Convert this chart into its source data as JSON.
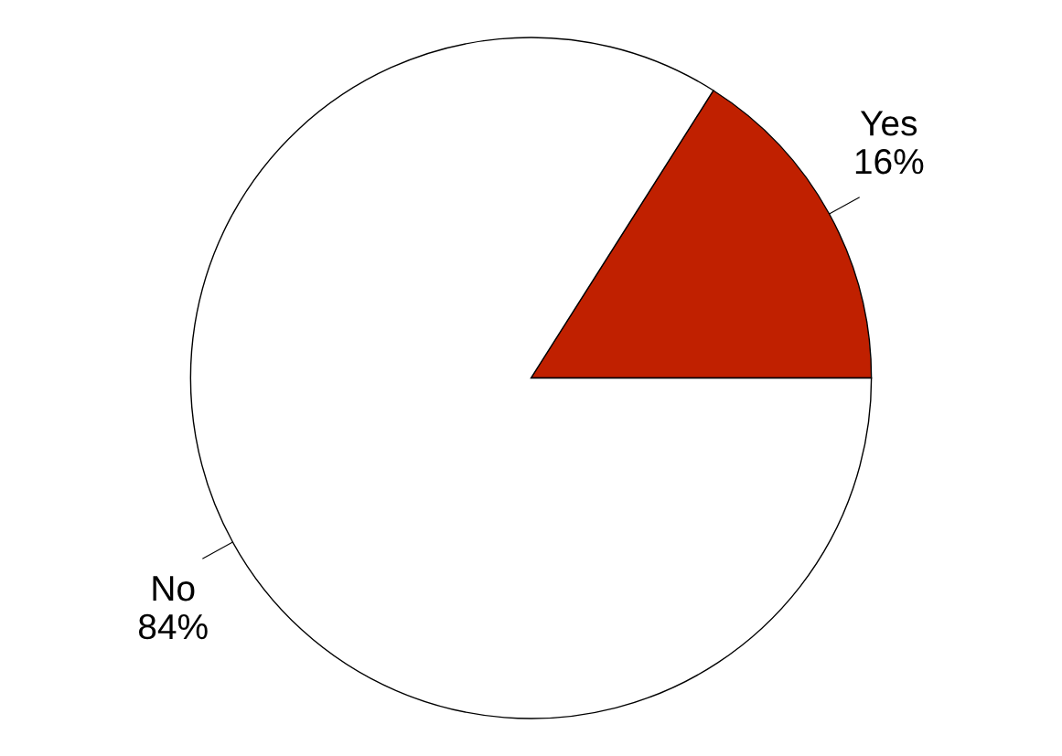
{
  "chart_data": {
    "type": "pie",
    "categories": [
      "Yes",
      "No"
    ],
    "values": [
      16,
      84
    ],
    "colors": [
      "#c02000",
      "#ffffff"
    ],
    "value_labels": [
      "16%",
      "84%"
    ],
    "legend": false
  }
}
